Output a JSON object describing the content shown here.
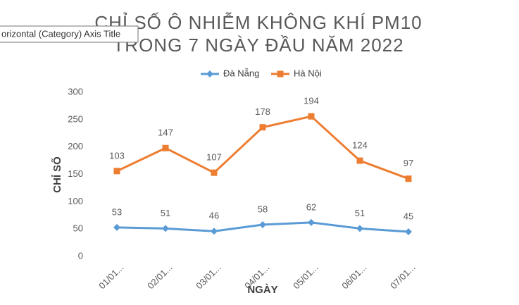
{
  "tooltip": "orizontal (Category) Axis Title",
  "chart_data": {
    "type": "line",
    "stacked": true,
    "title": [
      "CHỈ SỐ Ô NHIỄM KHÔNG KHÍ PM10",
      "TRONG 7 NGÀY ĐẦU NĂM 2022"
    ],
    "x_label": "NGÀY",
    "y_label": "CHỈ SỐ",
    "categories": [
      "01/01...",
      "02/01...",
      "03/01...",
      "04/01...",
      "05/01...",
      "06/01...",
      "07/01..."
    ],
    "series": [
      {
        "name": "Đà Nẵng",
        "color": "#5b9bd5",
        "marker": "diamond",
        "values": [
          53,
          51,
          46,
          58,
          62,
          51,
          45
        ]
      },
      {
        "name": "Hà Nội",
        "color": "#ed7d31",
        "marker": "square",
        "values": [
          103,
          147,
          107,
          178,
          194,
          124,
          97
        ]
      }
    ],
    "ylim": [
      0,
      300
    ],
    "yticks": [
      0,
      50,
      100,
      150,
      200,
      250,
      300
    ],
    "grid": false,
    "legend": "top"
  }
}
